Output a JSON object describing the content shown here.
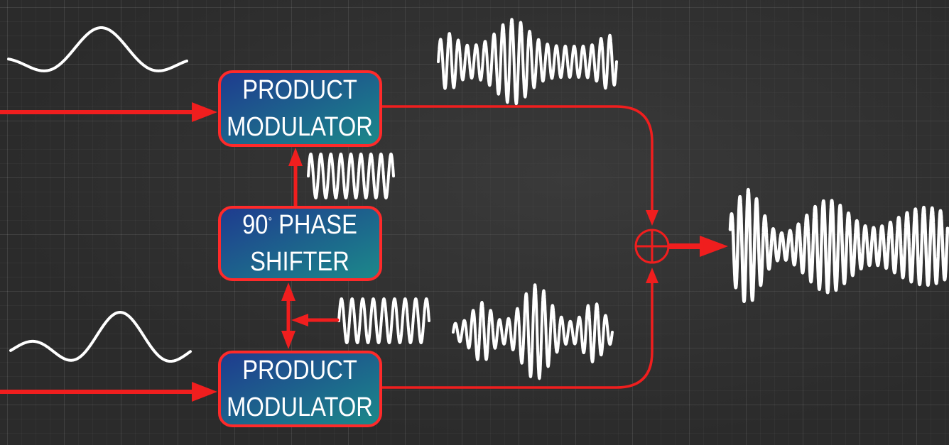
{
  "blocks": {
    "top_modulator": {
      "line1": "PRODUCT",
      "line2": "MODULATOR"
    },
    "phase_shifter": {
      "line1_number": "90",
      "degree_symbol": "°",
      "line1_word": "PHASE",
      "line2": "SHIFTER"
    },
    "bottom_modulator": {
      "line1": "PRODUCT",
      "line2": "MODULATOR"
    }
  },
  "adder_symbol": "+",
  "colors": {
    "background": "#2b2b2b",
    "grid": "#4a4a4a",
    "signal_path": "#f01e1e",
    "block_fill_start": "#1e3f8c",
    "block_fill_end": "#1d7f8a",
    "block_border": "#ff2a2a",
    "waveform": "#ffffff",
    "label_text": "#ffffff"
  }
}
